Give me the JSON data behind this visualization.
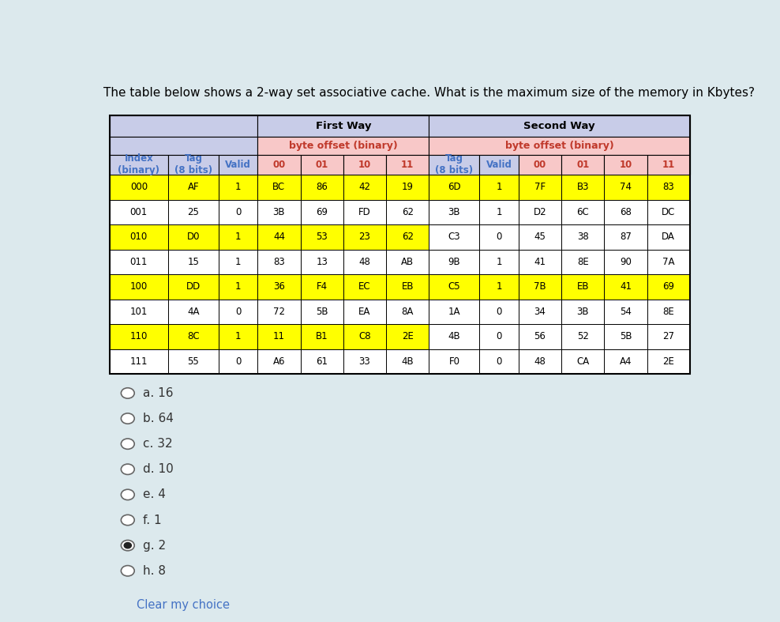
{
  "title": "The table below shows a 2-way set associative cache. What is the maximum size of the memory in Kbytes?",
  "bg_color": "#dce9ed",
  "header1_color": "#c8cce8",
  "header2_color": "#f8c8c8",
  "yellow_color": "#ffff00",
  "header_text_color_blue": "#4472c4",
  "header_text_color_red": "#c0392b",
  "index_col": [
    "000",
    "001",
    "010",
    "011",
    "100",
    "101",
    "110",
    "111"
  ],
  "index_highlight": [
    true,
    false,
    true,
    false,
    true,
    false,
    true,
    false
  ],
  "fw_tag": [
    "AF",
    "25",
    "D0",
    "15",
    "DD",
    "4A",
    "8C",
    "55"
  ],
  "fw_valid": [
    "1",
    "0",
    "1",
    "1",
    "1",
    "0",
    "1",
    "0"
  ],
  "fw_00": [
    "BC",
    "3B",
    "44",
    "83",
    "36",
    "72",
    "11",
    "A6"
  ],
  "fw_01": [
    "86",
    "69",
    "53",
    "13",
    "F4",
    "5B",
    "B1",
    "61"
  ],
  "fw_10": [
    "42",
    "FD",
    "23",
    "48",
    "EC",
    "EA",
    "C8",
    "33"
  ],
  "fw_11": [
    "19",
    "62",
    "62",
    "AB",
    "EB",
    "8A",
    "2E",
    "4B"
  ],
  "sw_tag": [
    "6D",
    "3B",
    "C3",
    "9B",
    "C5",
    "1A",
    "4B",
    "F0"
  ],
  "sw_valid": [
    "1",
    "1",
    "0",
    "1",
    "1",
    "0",
    "0",
    "0"
  ],
  "sw_00": [
    "7F",
    "D2",
    "45",
    "41",
    "7B",
    "34",
    "56",
    "48"
  ],
  "sw_01": [
    "B3",
    "6C",
    "38",
    "8E",
    "EB",
    "3B",
    "52",
    "CA"
  ],
  "sw_10": [
    "74",
    "68",
    "87",
    "90",
    "41",
    "54",
    "5B",
    "A4"
  ],
  "sw_11": [
    "83",
    "DC",
    "DA",
    "7A",
    "69",
    "8E",
    "27",
    "2E"
  ],
  "fw_tag_highlight": [
    true,
    false,
    true,
    false,
    true,
    false,
    true,
    false
  ],
  "sw_tag_highlight": [
    true,
    false,
    false,
    false,
    true,
    false,
    false,
    false
  ],
  "options": [
    {
      "label": "a. 16",
      "selected": false
    },
    {
      "label": "b. 64",
      "selected": false
    },
    {
      "label": "c. 32",
      "selected": false
    },
    {
      "label": "d. 10",
      "selected": false
    },
    {
      "label": "e. 4",
      "selected": false
    },
    {
      "label": "f. 1",
      "selected": false
    },
    {
      "label": "g. 2",
      "selected": true
    },
    {
      "label": "h. 8",
      "selected": false
    }
  ],
  "clear_label": "Clear my choice",
  "clear_color": "#4472c4"
}
